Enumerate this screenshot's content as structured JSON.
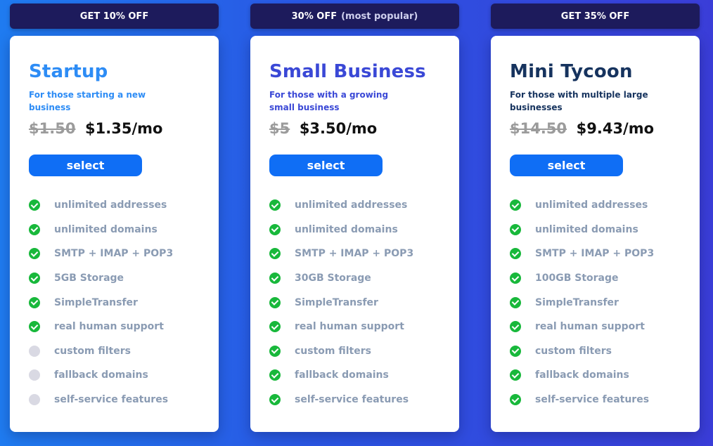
{
  "plans": [
    {
      "banner": "GET 10% OFF",
      "banner_note": "",
      "title": "Startup",
      "description": "For those starting a new business",
      "old_price": "$1.50",
      "new_price": "$1.35/mo",
      "select_label": "select",
      "features": [
        {
          "label": "unlimited addresses",
          "included": true
        },
        {
          "label": "unlimited domains",
          "included": true
        },
        {
          "label": "SMTP + IMAP + POP3",
          "included": true
        },
        {
          "label": "5GB Storage",
          "included": true
        },
        {
          "label": "SimpleTransfer",
          "included": true
        },
        {
          "label": "real human support",
          "included": true
        },
        {
          "label": "custom filters",
          "included": false
        },
        {
          "label": "fallback domains",
          "included": false
        },
        {
          "label": "self-service features",
          "included": false
        }
      ]
    },
    {
      "banner": "30% OFF",
      "banner_note": "(most popular)",
      "title": "Small Business",
      "description": "For those with a growing small business",
      "old_price": "$5",
      "new_price": "$3.50/mo",
      "select_label": "select",
      "features": [
        {
          "label": "unlimited addresses",
          "included": true
        },
        {
          "label": "unlimited domains",
          "included": true
        },
        {
          "label": "SMTP + IMAP + POP3",
          "included": true
        },
        {
          "label": "30GB Storage",
          "included": true
        },
        {
          "label": "SimpleTransfer",
          "included": true
        },
        {
          "label": "real human support",
          "included": true
        },
        {
          "label": "custom filters",
          "included": true
        },
        {
          "label": "fallback domains",
          "included": true
        },
        {
          "label": "self-service features",
          "included": true
        }
      ]
    },
    {
      "banner": "GET 35% OFF",
      "banner_note": "",
      "title": "Mini Tycoon",
      "description": "For those with multiple large businesses",
      "old_price": "$14.50",
      "new_price": "$9.43/mo",
      "select_label": "select",
      "features": [
        {
          "label": "unlimited addresses",
          "included": true
        },
        {
          "label": "unlimited domains",
          "included": true
        },
        {
          "label": "SMTP + IMAP + POP3",
          "included": true
        },
        {
          "label": "100GB Storage",
          "included": true
        },
        {
          "label": "SimpleTransfer",
          "included": true
        },
        {
          "label": "real human support",
          "included": true
        },
        {
          "label": "custom filters",
          "included": true
        },
        {
          "label": "fallback domains",
          "included": true
        },
        {
          "label": "self-service features",
          "included": true
        }
      ]
    }
  ],
  "icons": {
    "included": "check-circle-icon",
    "excluded": "empty-circle-icon"
  },
  "colors": {
    "banner_bg": "#1d1b5c",
    "button_bg": "#0f6ef5",
    "check_green": "#18b83b",
    "disabled_circle": "#d9d9e3",
    "feature_text": "#8a9bb3"
  }
}
